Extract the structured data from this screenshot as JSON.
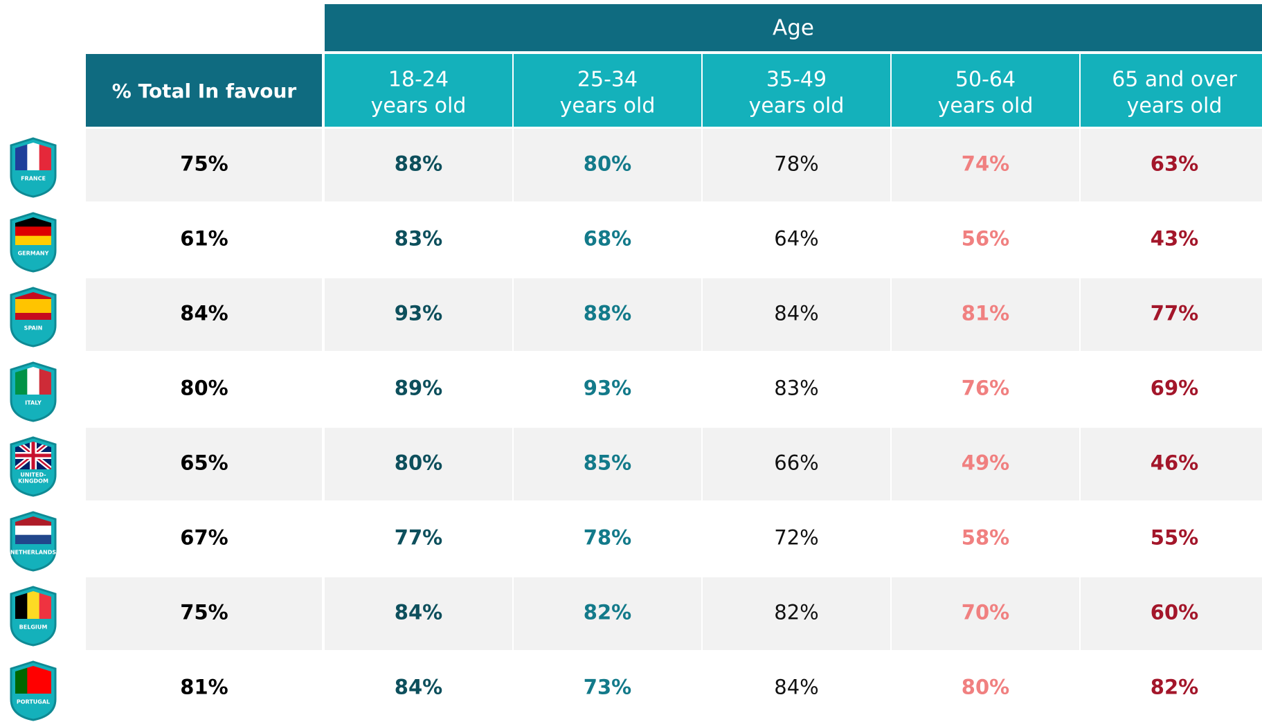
{
  "table": {
    "header": {
      "group": "Age",
      "total": "% Total In favour",
      "columns": [
        [
          "18-24",
          "years old"
        ],
        [
          "25-34",
          "years old"
        ],
        [
          "35-49",
          "years old"
        ],
        [
          "50-64",
          "years old"
        ],
        [
          "65 and over",
          "years old"
        ]
      ]
    },
    "rows": [
      {
        "country": [
          "FRANCE"
        ],
        "total": "75%",
        "values": [
          "88%",
          "80%",
          "78%",
          "74%",
          "63%"
        ]
      },
      {
        "country": [
          "GERMANY"
        ],
        "total": "61%",
        "values": [
          "83%",
          "68%",
          "64%",
          "56%",
          "43%"
        ]
      },
      {
        "country": [
          "SPAIN"
        ],
        "total": "84%",
        "values": [
          "93%",
          "88%",
          "84%",
          "81%",
          "77%"
        ]
      },
      {
        "country": [
          "ITALY"
        ],
        "total": "80%",
        "values": [
          "89%",
          "93%",
          "83%",
          "76%",
          "69%"
        ]
      },
      {
        "country": [
          "UNITED-",
          "KINGDOM"
        ],
        "total": "65%",
        "values": [
          "80%",
          "85%",
          "66%",
          "49%",
          "46%"
        ]
      },
      {
        "country": [
          "NETHERLANDS"
        ],
        "total": "67%",
        "values": [
          "77%",
          "78%",
          "72%",
          "58%",
          "55%"
        ]
      },
      {
        "country": [
          "BELGIUM"
        ],
        "total": "75%",
        "values": [
          "84%",
          "82%",
          "82%",
          "70%",
          "60%"
        ]
      },
      {
        "country": [
          "PORTUGAL"
        ],
        "total": "81%",
        "values": [
          "84%",
          "73%",
          "84%",
          "80%",
          "82%"
        ]
      }
    ]
  }
}
